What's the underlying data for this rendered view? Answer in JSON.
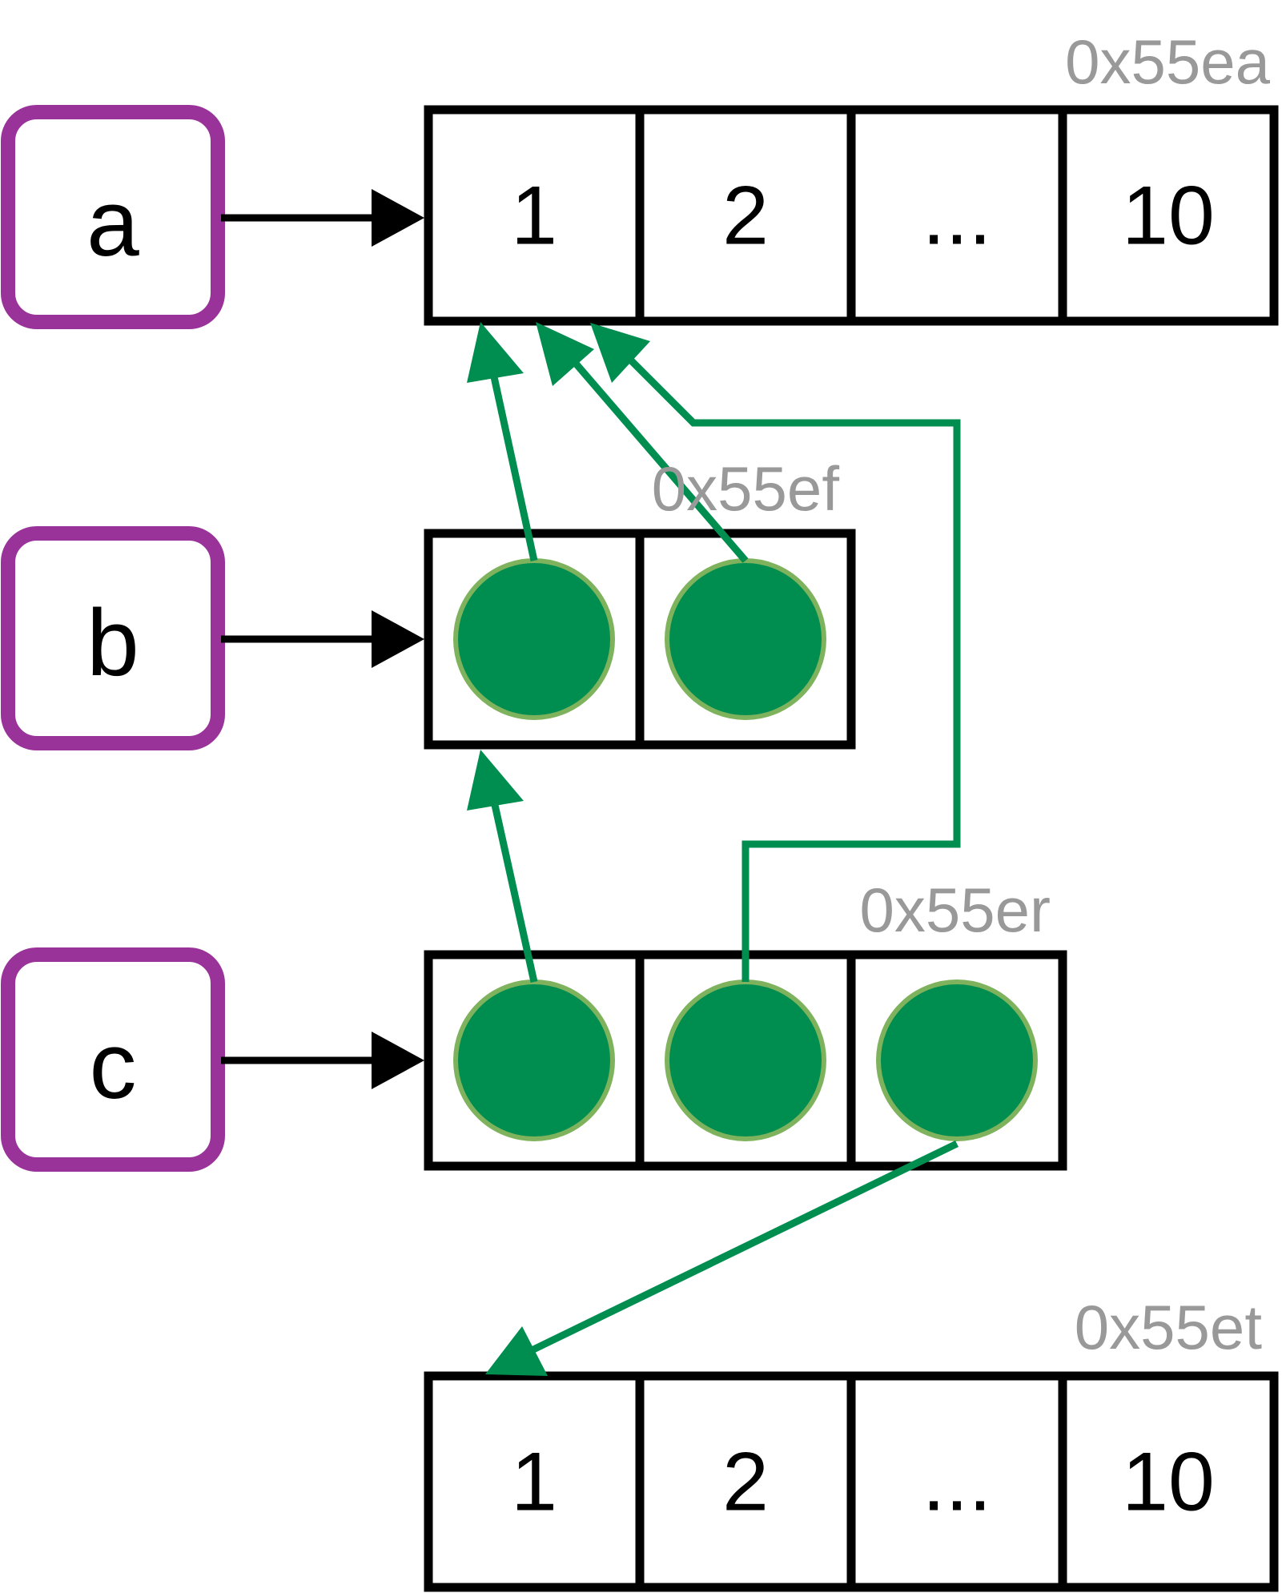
{
  "colors": {
    "variable_border": "#993399",
    "cell_border": "#000000",
    "reference_green": "#008e50",
    "reference_outline": "#7eb25c",
    "address_text": "#999999"
  },
  "variables": [
    {
      "label": "a"
    },
    {
      "label": "b"
    },
    {
      "label": "c"
    }
  ],
  "objects": {
    "vector_a": {
      "address": "0x55ea",
      "cells": [
        "1",
        "2",
        "...",
        "10"
      ]
    },
    "list_b": {
      "address": "0x55ef"
    },
    "list_c": {
      "address": "0x55er"
    },
    "vector_t": {
      "address": "0x55et",
      "cells": [
        "1",
        "2",
        "...",
        "10"
      ]
    }
  }
}
